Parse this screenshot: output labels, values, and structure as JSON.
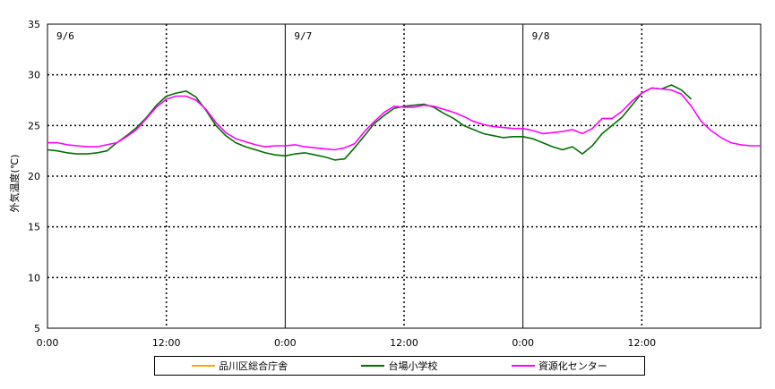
{
  "chart_data": {
    "type": "line",
    "ylabel": "外気温度(℃)",
    "ylim": [
      5,
      35
    ],
    "yticks": [
      5,
      10,
      15,
      20,
      25,
      30,
      35
    ],
    "xlim": [
      0,
      72
    ],
    "xticks": [
      {
        "hour": 0,
        "label": "0:00"
      },
      {
        "hour": 12,
        "label": "12:00"
      },
      {
        "hour": 24,
        "label": "0:00"
      },
      {
        "hour": 36,
        "label": "12:00"
      },
      {
        "hour": 48,
        "label": "0:00"
      },
      {
        "hour": 60,
        "label": "12:00"
      }
    ],
    "day_labels": [
      {
        "hour": 0,
        "label": "9/6"
      },
      {
        "hour": 24,
        "label": "9/7"
      },
      {
        "hour": 48,
        "label": "9/8"
      }
    ],
    "grid": "dotted",
    "legend_position": "bottom",
    "series": [
      {
        "name": "品川区総合庁舎",
        "color": "#ffa500",
        "points": []
      },
      {
        "name": "台場小学校",
        "color": "#007000",
        "points": [
          [
            0,
            22.6
          ],
          [
            1,
            22.5
          ],
          [
            2,
            22.3
          ],
          [
            3,
            22.2
          ],
          [
            4,
            22.2
          ],
          [
            5,
            22.3
          ],
          [
            6,
            22.5
          ],
          [
            7,
            23.3
          ],
          [
            8,
            24.0
          ],
          [
            9,
            24.8
          ],
          [
            10,
            25.8
          ],
          [
            11,
            27.0
          ],
          [
            12,
            27.9
          ],
          [
            13,
            28.2
          ],
          [
            14,
            28.4
          ],
          [
            15,
            27.8
          ],
          [
            16,
            26.5
          ],
          [
            17,
            25.0
          ],
          [
            18,
            24.0
          ],
          [
            19,
            23.3
          ],
          [
            20,
            22.9
          ],
          [
            21,
            22.6
          ],
          [
            22,
            22.3
          ],
          [
            23,
            22.1
          ],
          [
            24,
            22.0
          ],
          [
            25,
            22.2
          ],
          [
            26,
            22.3
          ],
          [
            27,
            22.1
          ],
          [
            28,
            21.9
          ],
          [
            29,
            21.6
          ],
          [
            30,
            21.7
          ],
          [
            31,
            22.8
          ],
          [
            32,
            24.0
          ],
          [
            33,
            25.2
          ],
          [
            34,
            26.0
          ],
          [
            35,
            26.7
          ],
          [
            36,
            26.9
          ],
          [
            37,
            27.0
          ],
          [
            38,
            27.1
          ],
          [
            39,
            26.8
          ],
          [
            40,
            26.2
          ],
          [
            41,
            25.7
          ],
          [
            42,
            25.0
          ],
          [
            43,
            24.6
          ],
          [
            44,
            24.2
          ],
          [
            45,
            24.0
          ],
          [
            46,
            23.8
          ],
          [
            47,
            23.9
          ],
          [
            48,
            23.9
          ],
          [
            49,
            23.7
          ],
          [
            50,
            23.3
          ],
          [
            51,
            22.9
          ],
          [
            52,
            22.6
          ],
          [
            53,
            22.9
          ],
          [
            54,
            22.2
          ],
          [
            55,
            23.0
          ],
          [
            56,
            24.2
          ],
          [
            57,
            25.0
          ],
          [
            58,
            25.8
          ],
          [
            59,
            27.0
          ],
          [
            60,
            28.2
          ],
          [
            61,
            28.7
          ],
          [
            62,
            28.6
          ],
          [
            63,
            29.0
          ],
          [
            64,
            28.5
          ],
          [
            65,
            27.6
          ]
        ]
      },
      {
        "name": "資源化センター",
        "color": "#ff00ff",
        "points": [
          [
            0,
            23.3
          ],
          [
            1,
            23.3
          ],
          [
            2,
            23.1
          ],
          [
            3,
            23.0
          ],
          [
            4,
            22.9
          ],
          [
            5,
            22.9
          ],
          [
            6,
            23.1
          ],
          [
            7,
            23.3
          ],
          [
            8,
            23.9
          ],
          [
            9,
            24.6
          ],
          [
            10,
            25.7
          ],
          [
            11,
            26.8
          ],
          [
            12,
            27.6
          ],
          [
            13,
            27.9
          ],
          [
            14,
            27.9
          ],
          [
            15,
            27.5
          ],
          [
            16,
            26.6
          ],
          [
            17,
            25.3
          ],
          [
            18,
            24.3
          ],
          [
            19,
            23.7
          ],
          [
            20,
            23.4
          ],
          [
            21,
            23.1
          ],
          [
            22,
            22.9
          ],
          [
            23,
            23.0
          ],
          [
            24,
            23.0
          ],
          [
            25,
            23.1
          ],
          [
            26,
            22.9
          ],
          [
            27,
            22.8
          ],
          [
            28,
            22.7
          ],
          [
            29,
            22.6
          ],
          [
            30,
            22.8
          ],
          [
            31,
            23.2
          ],
          [
            32,
            24.4
          ],
          [
            33,
            25.4
          ],
          [
            34,
            26.3
          ],
          [
            35,
            26.9
          ],
          [
            36,
            26.8
          ],
          [
            37,
            26.8
          ],
          [
            38,
            27.0
          ],
          [
            39,
            26.9
          ],
          [
            40,
            26.6
          ],
          [
            41,
            26.3
          ],
          [
            42,
            25.9
          ],
          [
            43,
            25.4
          ],
          [
            44,
            25.1
          ],
          [
            45,
            24.9
          ],
          [
            46,
            24.8
          ],
          [
            47,
            24.7
          ],
          [
            48,
            24.7
          ],
          [
            49,
            24.5
          ],
          [
            50,
            24.2
          ],
          [
            51,
            24.3
          ],
          [
            52,
            24.4
          ],
          [
            53,
            24.6
          ],
          [
            54,
            24.2
          ],
          [
            55,
            24.7
          ],
          [
            56,
            25.7
          ],
          [
            57,
            25.7
          ],
          [
            58,
            26.4
          ],
          [
            59,
            27.4
          ],
          [
            60,
            28.2
          ],
          [
            61,
            28.7
          ],
          [
            62,
            28.6
          ],
          [
            63,
            28.5
          ],
          [
            64,
            28.1
          ],
          [
            65,
            26.9
          ],
          [
            66,
            25.4
          ],
          [
            67,
            24.5
          ],
          [
            68,
            23.8
          ],
          [
            69,
            23.3
          ],
          [
            70,
            23.1
          ],
          [
            71,
            23.0
          ],
          [
            72,
            23.0
          ]
        ]
      }
    ]
  }
}
